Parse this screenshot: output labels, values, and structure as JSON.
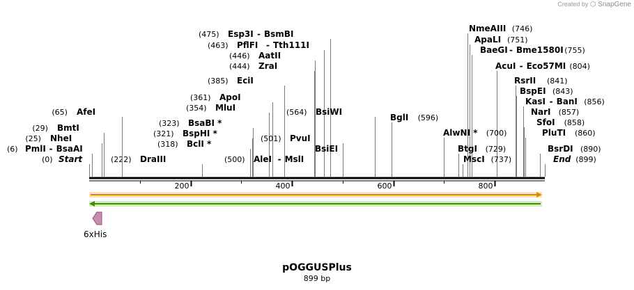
{
  "credit": {
    "text": "Created by",
    "brand": "SnapGene"
  },
  "sequence": {
    "name": "pOGGUSPlus",
    "length_label": "899 bp",
    "length": 899
  },
  "ruler": {
    "ticks": [
      {
        "pos": 200,
        "label": "200"
      },
      {
        "pos": 400,
        "label": "400"
      },
      {
        "pos": 600,
        "label": "600"
      },
      {
        "pos": 800,
        "label": "800"
      }
    ]
  },
  "features": [
    {
      "name": "6xHis",
      "type": "cds"
    },
    {
      "name": "forward-strand",
      "type": "orf",
      "direction": "forward",
      "color": "#f5a623"
    },
    {
      "name": "reverse-strand",
      "type": "orf",
      "direction": "reverse",
      "color": "#7ac143"
    }
  ],
  "sites": [
    {
      "id": "esp3i",
      "site": 475,
      "pos_label": "(475)",
      "name": "Esp3I",
      "alt": "BsmBI"
    },
    {
      "id": "pflfi",
      "site": 463,
      "pos_label": "(463)",
      "name": "PflFI",
      "alt": "Tth111I"
    },
    {
      "id": "aatii",
      "site": 446,
      "pos_label": "(446)",
      "name": "AatII"
    },
    {
      "id": "zrai",
      "site": 444,
      "pos_label": "(444)",
      "name": "ZraI"
    },
    {
      "id": "ecii",
      "site": 385,
      "pos_label": "(385)",
      "name": "EciI"
    },
    {
      "id": "apoi",
      "site": 361,
      "pos_label": "(361)",
      "name": "ApoI"
    },
    {
      "id": "mlui",
      "site": 354,
      "pos_label": "(354)",
      "name": "MluI"
    },
    {
      "id": "bsabi",
      "site": 323,
      "pos_label": "(323)",
      "name": "BsaBI *"
    },
    {
      "id": "bsphi",
      "site": 321,
      "pos_label": "(321)",
      "name": "BspHI *"
    },
    {
      "id": "bcli",
      "site": 318,
      "pos_label": "(318)",
      "name": "BclI *"
    },
    {
      "id": "drai",
      "site": 222,
      "pos_label": "(222)",
      "name": "DraIII"
    },
    {
      "id": "afei",
      "site": 65,
      "pos_label": "(65)",
      "name": "AfeI"
    },
    {
      "id": "bmti",
      "site": 29,
      "pos_label": "(29)",
      "name": "BmtI"
    },
    {
      "id": "nhei",
      "site": 25,
      "pos_label": "(25)",
      "name": "NheI"
    },
    {
      "id": "pmli",
      "site": 6,
      "pos_label": "(6)",
      "name": "PmlI",
      "alt": "BsaAI"
    },
    {
      "id": "start",
      "site": 0,
      "pos_label": "(0)",
      "name": "Start"
    },
    {
      "id": "alei",
      "site": 500,
      "pos_label": "(500)",
      "name": "AleI",
      "alt": "MslI"
    },
    {
      "id": "pvui",
      "site": 501,
      "pos_label": "(501)",
      "name": "PvuI"
    },
    {
      "id": "bsiei",
      "site": 501,
      "pos_label": "",
      "name": "BsiEI"
    },
    {
      "id": "bsiwi",
      "site": 564,
      "pos_label": "(564)",
      "name": "BsiWI"
    },
    {
      "id": "bgli",
      "site": 596,
      "pos_label": "(596)",
      "name": "BglI"
    },
    {
      "id": "nmeaiii",
      "site": 746,
      "pos_label": "(746)",
      "name": "NmeAIII"
    },
    {
      "id": "apali",
      "site": 751,
      "pos_label": "(751)",
      "name": "ApaLI"
    },
    {
      "id": "baegi",
      "site": 755,
      "pos_label": "(755)",
      "name": "BaeGI",
      "alt": "Bme1580I"
    },
    {
      "id": "acui",
      "site": 804,
      "pos_label": "(804)",
      "name": "AcuI",
      "alt": "Eco57MI"
    },
    {
      "id": "rsrii",
      "site": 841,
      "pos_label": "(841)",
      "name": "RsrII"
    },
    {
      "id": "bspei",
      "site": 843,
      "pos_label": "(843)",
      "name": "BspEI"
    },
    {
      "id": "kasi",
      "site": 856,
      "pos_label": "(856)",
      "name": "KasI",
      "alt": "BanI"
    },
    {
      "id": "nari",
      "site": 857,
      "pos_label": "(857)",
      "name": "NarI"
    },
    {
      "id": "sfoi",
      "site": 858,
      "pos_label": "(858)",
      "name": "SfoI"
    },
    {
      "id": "pluti",
      "site": 860,
      "pos_label": "(860)",
      "name": "PluTI"
    },
    {
      "id": "alwni",
      "site": 700,
      "pos_label": "(700)",
      "name": "AlwNI *"
    },
    {
      "id": "btgi",
      "site": 729,
      "pos_label": "(729)",
      "name": "BtgI"
    },
    {
      "id": "msci",
      "site": 737,
      "pos_label": "(737)",
      "name": "MscI"
    },
    {
      "id": "bsrdi",
      "site": 890,
      "pos_label": "(890)",
      "name": "BsrDI"
    },
    {
      "id": "end",
      "site": 899,
      "pos_label": "(899)",
      "name": "End"
    }
  ]
}
